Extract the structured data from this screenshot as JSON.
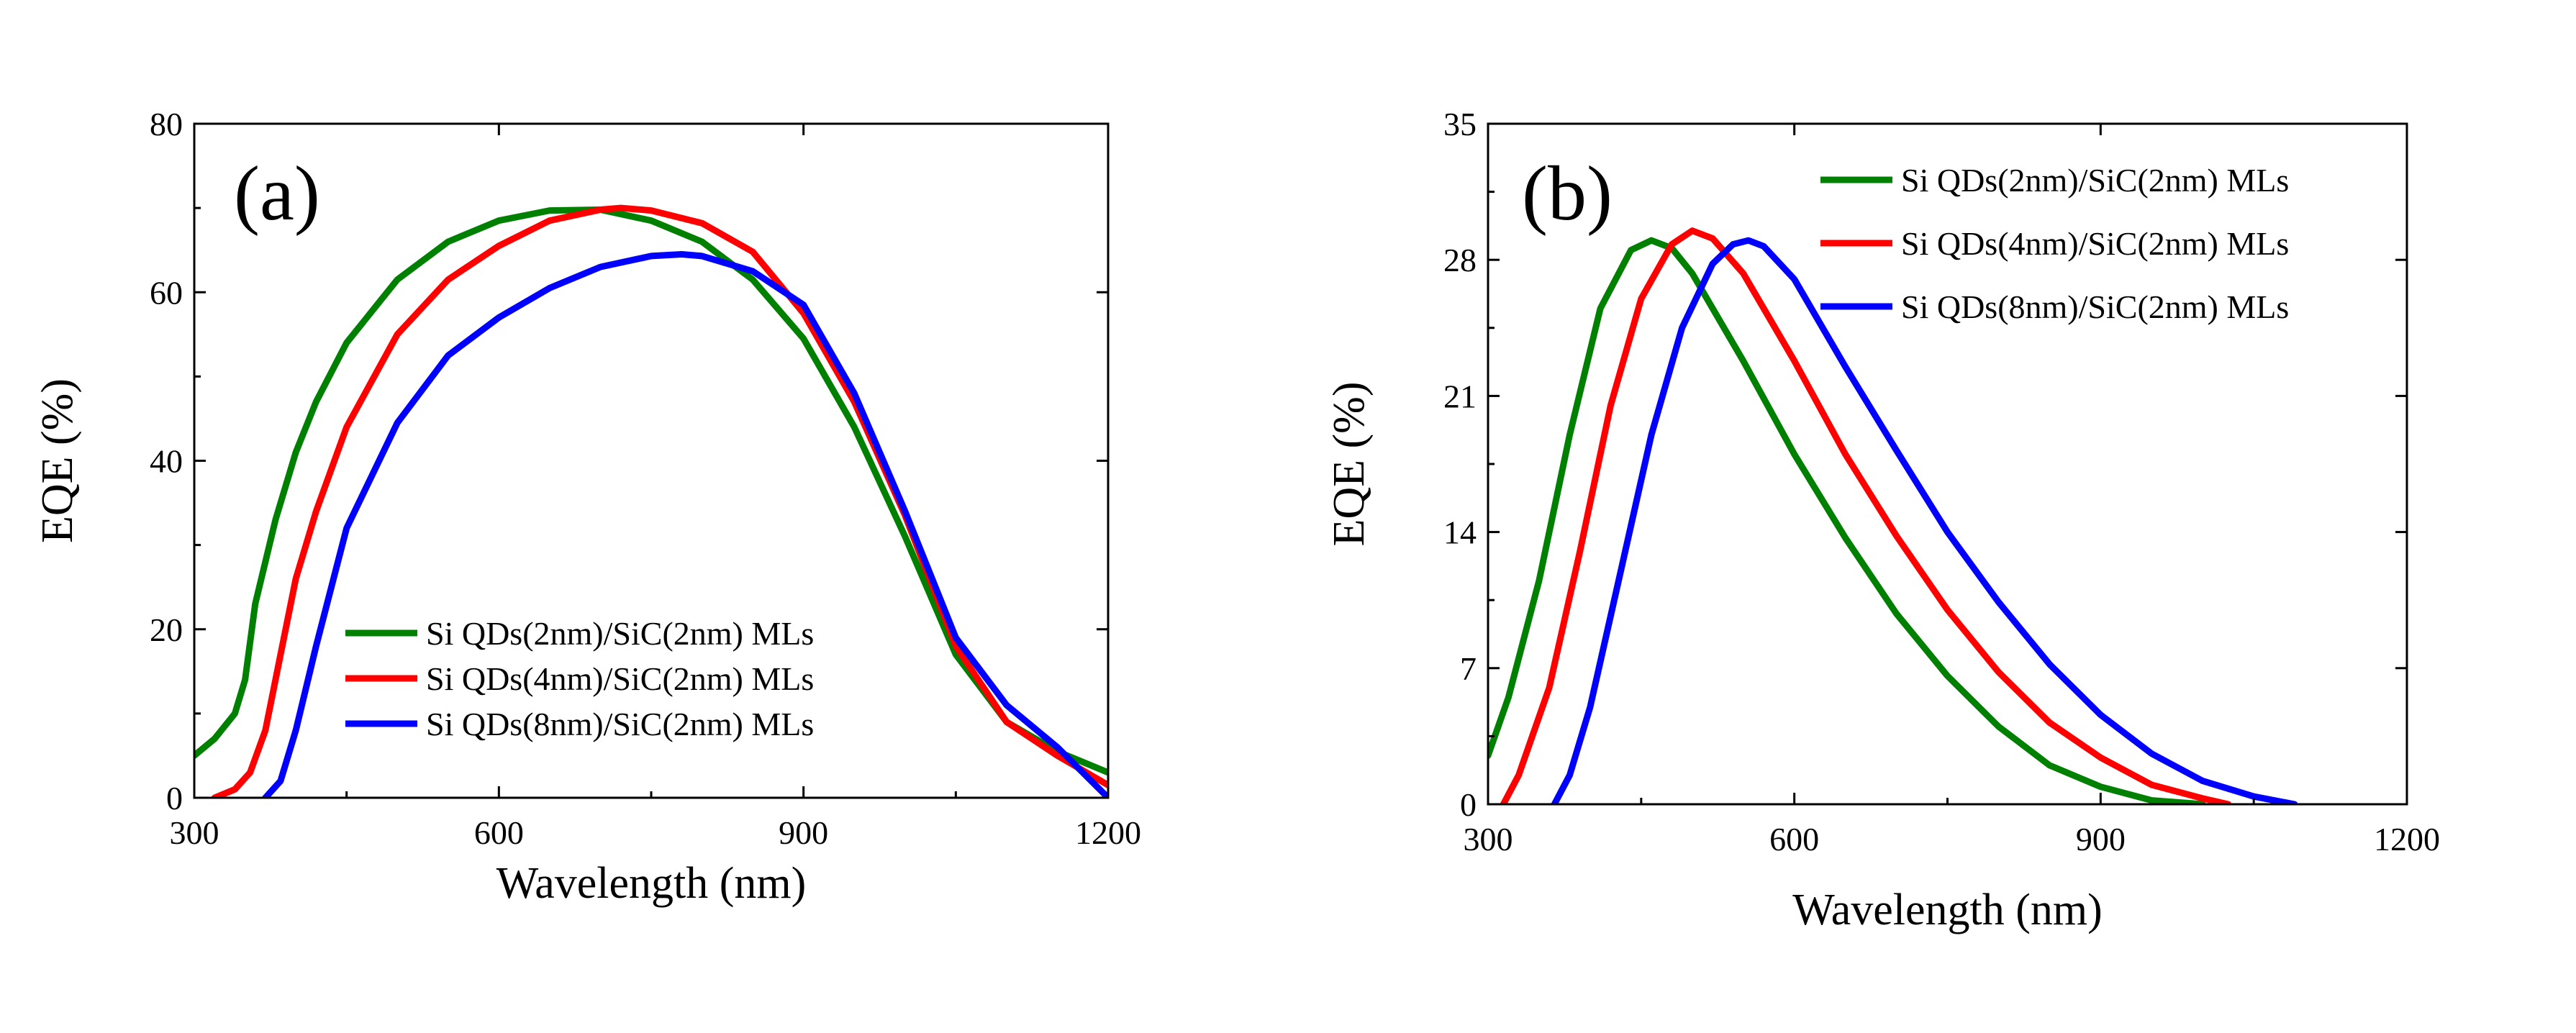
{
  "chart_data": [
    {
      "type": "line",
      "panel_label": "(a)",
      "xlabel": "Wavelength (nm)",
      "ylabel": "EQE (%)",
      "xlim": [
        300,
        1200
      ],
      "ylim": [
        0,
        80
      ],
      "xticks": [
        300,
        600,
        900,
        1200
      ],
      "yticks": [
        0,
        20,
        40,
        60,
        80
      ],
      "legend_position": "bottom-left",
      "series": [
        {
          "name": "Si QDs(2nm)/SiC(2nm) MLs",
          "color": "#008000",
          "x": [
            300,
            320,
            340,
            350,
            360,
            380,
            400,
            420,
            450,
            500,
            550,
            600,
            650,
            700,
            750,
            800,
            850,
            900,
            950,
            1000,
            1050,
            1100,
            1150,
            1200
          ],
          "y": [
            5,
            7,
            10,
            14,
            23,
            33,
            41,
            47,
            54,
            61.5,
            66,
            68.5,
            69.7,
            69.8,
            68.5,
            66,
            61.5,
            54.5,
            44,
            31,
            17,
            9,
            5.5,
            3
          ]
        },
        {
          "name": "Si QDs(4nm)/SiC(2nm) MLs",
          "color": "#ff0000",
          "x": [
            320,
            340,
            355,
            370,
            385,
            400,
            420,
            450,
            500,
            550,
            600,
            650,
            700,
            720,
            750,
            800,
            850,
            900,
            950,
            1000,
            1050,
            1100,
            1150,
            1200
          ],
          "y": [
            0,
            1,
            3,
            8,
            17,
            26,
            34,
            44,
            55,
            61.5,
            65.5,
            68.5,
            69.8,
            70,
            69.7,
            68.2,
            64.8,
            57.5,
            47,
            33.5,
            18,
            9,
            5,
            1.5
          ]
        },
        {
          "name": "Si QDs(8nm)/SiC(2nm) MLs",
          "color": "#0000ff",
          "x": [
            370,
            385,
            400,
            420,
            450,
            500,
            550,
            600,
            650,
            700,
            750,
            780,
            800,
            850,
            900,
            950,
            1000,
            1050,
            1100,
            1150,
            1200
          ],
          "y": [
            0,
            2,
            8,
            18,
            32,
            44.5,
            52.5,
            57,
            60.5,
            63,
            64.3,
            64.5,
            64.3,
            62.5,
            58.5,
            48,
            34,
            19,
            11,
            6,
            0
          ]
        }
      ]
    },
    {
      "type": "line",
      "panel_label": "(b)",
      "xlabel": "Wavelength (nm)",
      "ylabel": "EQE (%)",
      "xlim": [
        300,
        1200
      ],
      "ylim": [
        0,
        35
      ],
      "xticks": [
        300,
        600,
        900,
        1200
      ],
      "yticks": [
        0,
        7,
        14,
        21,
        28,
        35
      ],
      "legend_position": "top-right",
      "series": [
        {
          "name": "Si QDs(2nm)/SiC(2nm) MLs",
          "color": "#008000",
          "x": [
            300,
            320,
            350,
            380,
            410,
            440,
            460,
            480,
            500,
            550,
            600,
            650,
            700,
            750,
            800,
            850,
            900,
            950,
            1000
          ],
          "y": [
            2.5,
            5.5,
            11.5,
            19,
            25.5,
            28.5,
            29,
            28.6,
            27.3,
            22.8,
            18,
            13.7,
            9.8,
            6.6,
            4,
            2,
            0.9,
            0.2,
            0
          ]
        },
        {
          "name": "Si QDs(4nm)/SiC(2nm) MLs",
          "color": "#ff0000",
          "x": [
            315,
            330,
            360,
            390,
            420,
            450,
            480,
            500,
            520,
            550,
            600,
            650,
            700,
            750,
            800,
            850,
            900,
            950,
            1000,
            1025
          ],
          "y": [
            0,
            1.5,
            6,
            13,
            20.5,
            26,
            28.8,
            29.5,
            29.1,
            27.3,
            22.8,
            18,
            13.8,
            10,
            6.8,
            4.2,
            2.4,
            1,
            0.3,
            0
          ]
        },
        {
          "name": "Si QDs(8nm)/SiC(2nm) MLs",
          "color": "#0000ff",
          "x": [
            365,
            380,
            400,
            430,
            460,
            490,
            520,
            540,
            555,
            570,
            600,
            650,
            700,
            750,
            800,
            850,
            900,
            950,
            1000,
            1050,
            1090
          ],
          "y": [
            0,
            1.5,
            5,
            12,
            19,
            24.5,
            27.8,
            28.8,
            29,
            28.7,
            27,
            22.5,
            18.2,
            14,
            10.4,
            7.2,
            4.6,
            2.6,
            1.2,
            0.4,
            0
          ]
        }
      ]
    }
  ]
}
